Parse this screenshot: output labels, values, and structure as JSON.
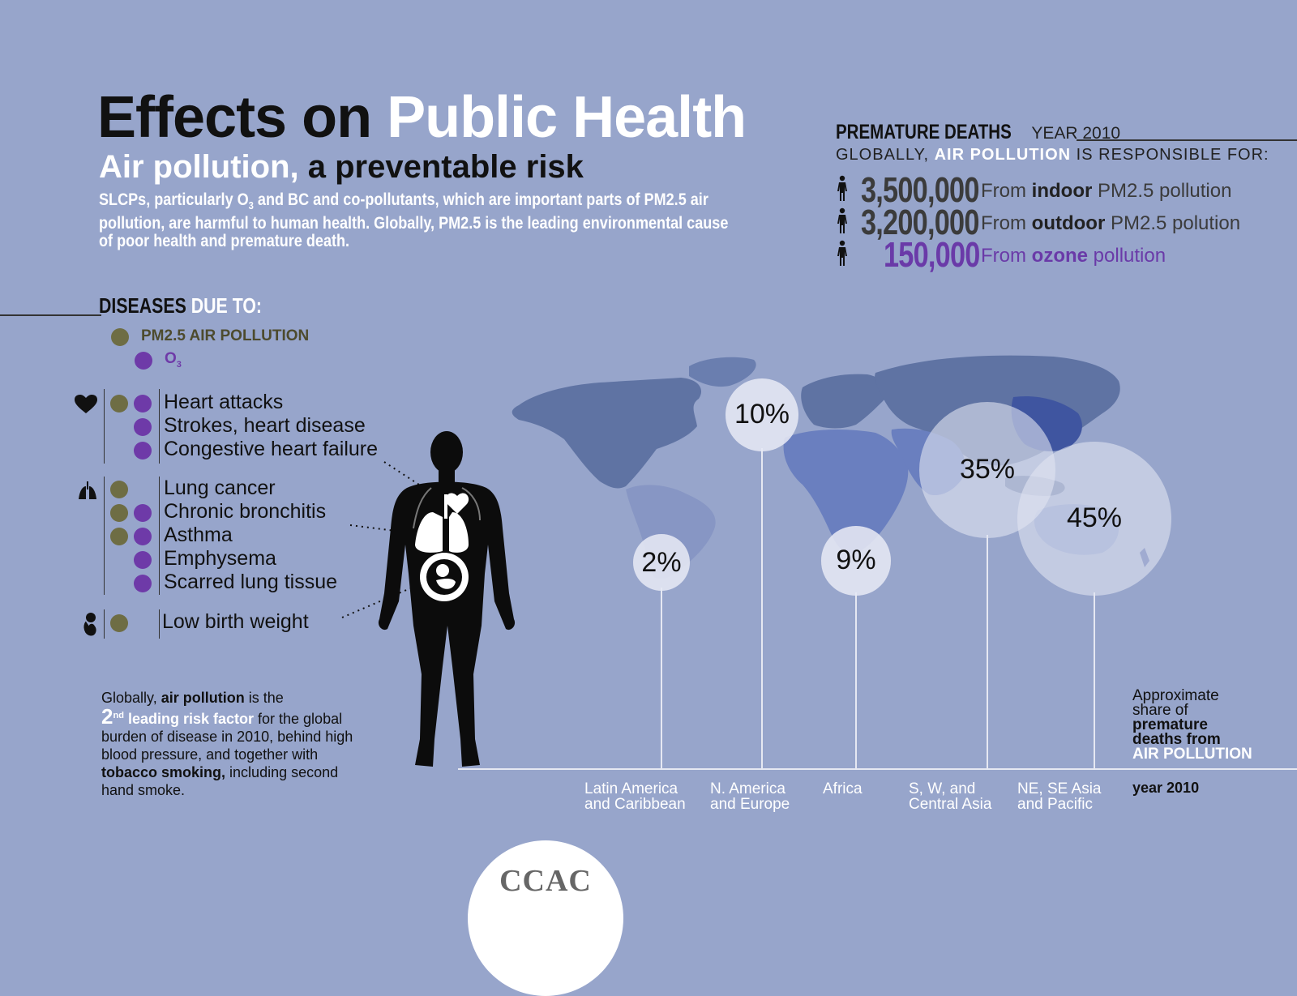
{
  "header": {
    "title_black": "Effects on",
    "title_white": "Public Health",
    "subtitle_white": "Air pollution,",
    "subtitle_black": "a preventable risk",
    "intro_part1": "SLCPs, particularly O",
    "intro_sub1": "3",
    "intro_part2": " and BC and co-pollutants, which are important parts of PM2.5 air pollution, are harmful to human health.  Globally, PM2.5 is the leading environmental cause of poor health and premature death."
  },
  "premature_deaths": {
    "heading_bold": "PREMATURE DEATHS",
    "heading_year": "YEAR 2010",
    "sub_prefix": "GLOBALLY,",
    "sub_highlight": "AIR POLLUTION",
    "sub_suffix": "IS RESPONSIBLE FOR:",
    "rows": [
      {
        "value": "3,500,000",
        "from": "From",
        "bold": "indoor",
        "rest": "PM2.5 pollution"
      },
      {
        "value": "3,200,000",
        "from": "From",
        "bold": "outdoor",
        "rest": "PM2.5 polution"
      },
      {
        "value": "150,000",
        "from": "From",
        "bold": "ozone",
        "rest": "pollution"
      }
    ]
  },
  "diseases": {
    "heading_black": "DISEASES",
    "heading_white": "DUE TO:",
    "legend_pm": "PM2.5 AIR POLLUTION",
    "legend_o3": "O",
    "legend_o3_sub": "3",
    "colors": {
      "pm": "#6e6d44",
      "o3": "#6e3aa8"
    },
    "heart_group": [
      "Heart attacks",
      "Strokes, heart disease",
      "Congestive heart failure"
    ],
    "lung_group": [
      "Lung cancer",
      "Chronic bronchitis",
      "Asthma",
      "Emphysema",
      "Scarred lung tissue"
    ],
    "birth_group": [
      "Low birth weight"
    ]
  },
  "risk_note": {
    "p1": "Globally,",
    "p2": "air pollution",
    "p3": "is the",
    "rank": "2",
    "rank_sup": "nd",
    "p4": "leading risk factor",
    "p5": "for the global burden of disease in 2010, behind high blood pressure, and together with",
    "p6": "tobacco smoking,",
    "p7": "including second hand smoke."
  },
  "chart_data": {
    "type": "bubble",
    "title": "Approximate share of premature deaths from AIR POLLUTION",
    "year": "year 2010",
    "categories": [
      "Latin America and Caribbean",
      "N. America and Europe",
      "Africa",
      "S, W, and Central Asia",
      "NE, SE Asia and Pacific"
    ],
    "values": [
      2,
      10,
      9,
      35,
      45
    ],
    "labels": [
      "2%",
      "10%",
      "9%",
      "35%",
      "45%"
    ]
  },
  "regions": {
    "latam_1": "Latin America",
    "latam_2": "and Caribbean",
    "nam_1": "N. America",
    "nam_2": "and Europe",
    "africa": "Africa",
    "swc_1": "S, W, and",
    "swc_2": "Central Asia",
    "ne_1": "NE, SE Asia",
    "ne_2": "and Pacific"
  },
  "share_note": {
    "l1": "Approximate",
    "l2": "share of",
    "l3": "premature",
    "l4": "deaths from",
    "l5": "AIR POLLUTION",
    "year": "year 2010"
  },
  "logo": {
    "text": "CCAC"
  }
}
